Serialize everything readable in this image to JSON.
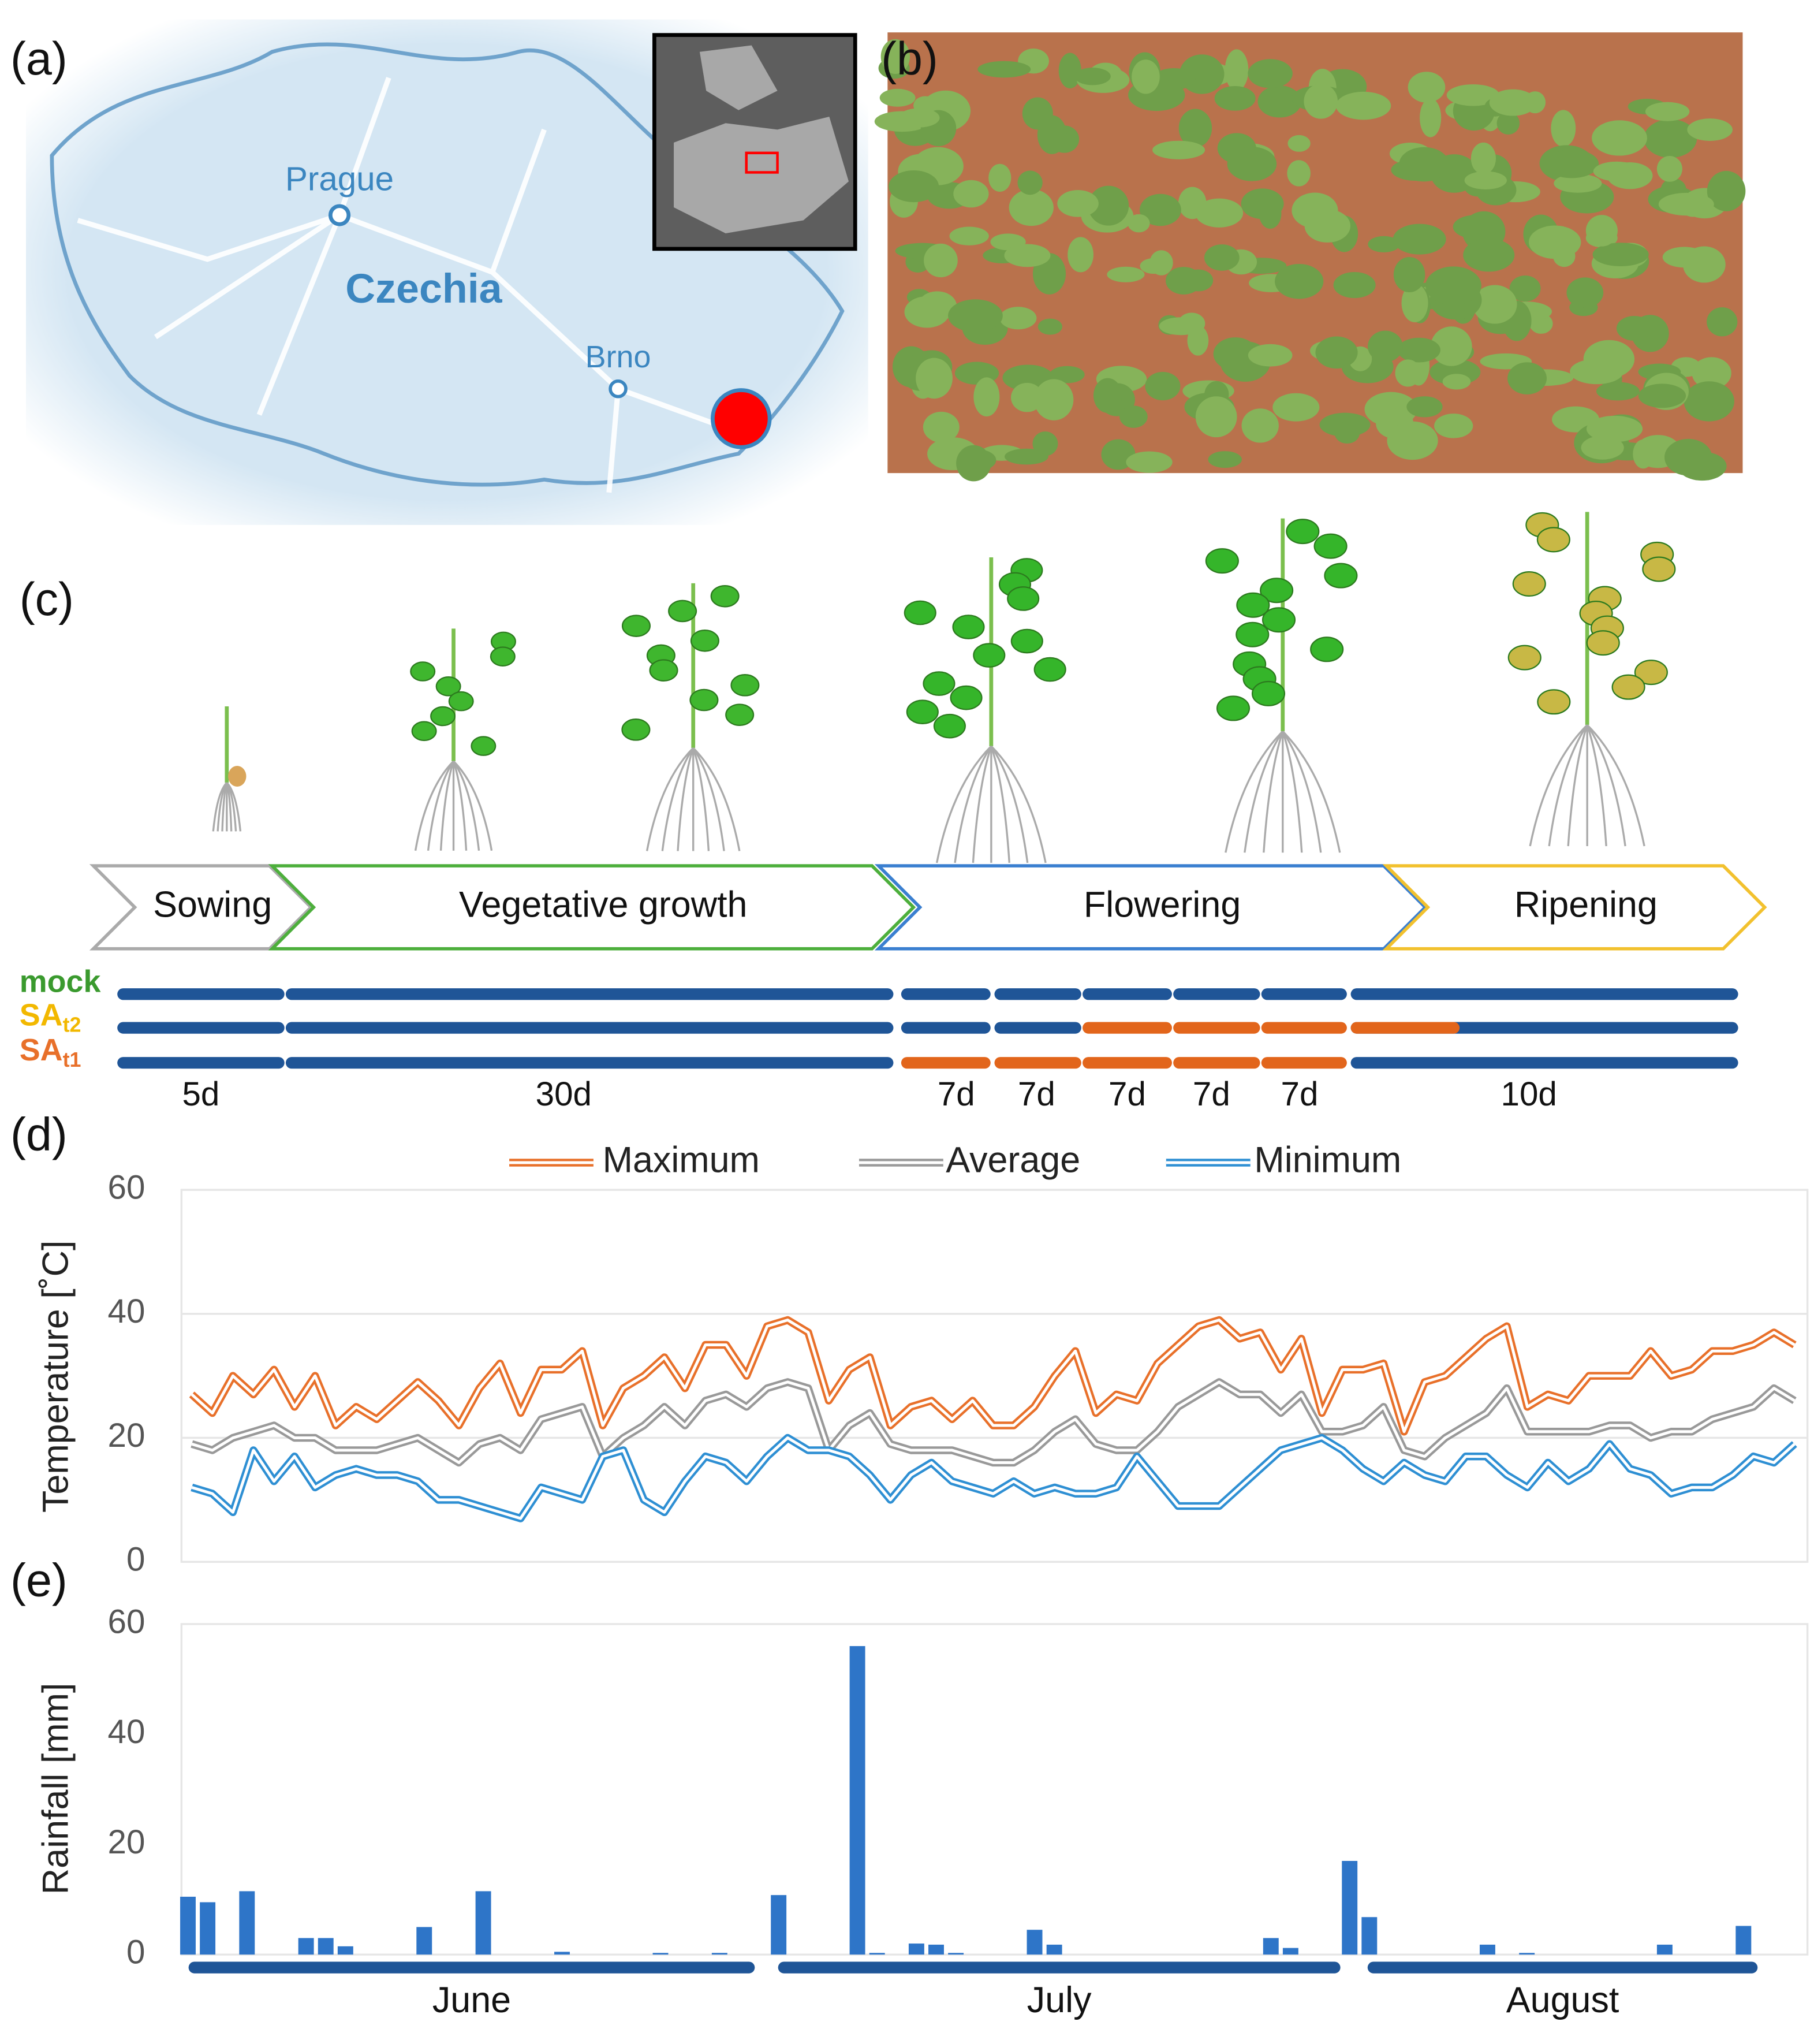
{
  "panels": {
    "a": "(a)",
    "b": "(b)",
    "c": "(c)",
    "d": "(d)",
    "e": "(e)"
  },
  "map": {
    "labels": [
      "Prague",
      "Czechia",
      "Brno"
    ]
  },
  "stages": [
    "Sowing",
    "Vegetative growth",
    "Flowering",
    "Ripening"
  ],
  "treatments": [
    {
      "name": "mock",
      "color": "#3a9a2e"
    },
    {
      "name": "SA",
      "sub": "t2",
      "color": "#f2b800"
    },
    {
      "name": "SA",
      "sub": "t1",
      "color": "#e8702a"
    }
  ],
  "durations": [
    "5d",
    "30d",
    "7d",
    "7d",
    "7d",
    "7d",
    "7d",
    "10d"
  ],
  "chart_data": [
    {
      "type": "line",
      "ylabel": "Temperature [˚C]",
      "ylim": [
        0,
        60
      ],
      "yticks": [
        0,
        20,
        40,
        60
      ],
      "grid": true,
      "series": [
        {
          "name": "Maximum",
          "color": "#e8702a",
          "values": [
            27,
            24,
            30,
            27,
            31,
            25,
            30,
            22,
            25,
            23,
            26,
            29,
            26,
            22,
            28,
            32,
            24,
            31,
            31,
            34,
            22,
            28,
            30,
            33,
            28,
            35,
            35,
            30,
            38,
            39,
            37,
            26,
            31,
            33,
            22,
            25,
            26,
            23,
            26,
            22,
            22,
            25,
            30,
            34,
            24,
            27,
            26,
            32,
            35,
            38,
            39,
            36,
            37,
            31,
            36,
            24,
            31,
            31,
            32,
            21,
            29,
            30,
            33,
            36,
            38,
            25,
            27,
            26,
            30,
            30,
            30,
            34,
            30,
            31,
            34,
            34,
            35,
            37,
            35
          ]
        },
        {
          "name": "Average",
          "color": "#999999",
          "values": [
            19,
            18,
            20,
            21,
            22,
            20,
            20,
            18,
            18,
            18,
            19,
            20,
            18,
            16,
            19,
            20,
            18,
            23,
            24,
            25,
            17,
            20,
            22,
            25,
            22,
            26,
            27,
            25,
            28,
            29,
            28,
            18,
            22,
            24,
            19,
            18,
            18,
            18,
            17,
            16,
            16,
            18,
            21,
            23,
            19,
            18,
            18,
            21,
            25,
            27,
            29,
            27,
            27,
            24,
            27,
            21,
            21,
            22,
            25,
            18,
            17,
            20,
            22,
            24,
            28,
            21,
            21,
            21,
            21,
            22,
            22,
            20,
            21,
            21,
            23,
            24,
            25,
            28,
            26
          ]
        },
        {
          "name": "Minimum",
          "color": "#2e8fd3",
          "values": [
            12,
            11,
            8,
            18,
            13,
            17,
            12,
            14,
            15,
            14,
            14,
            13,
            10,
            10,
            9,
            8,
            7,
            12,
            11,
            10,
            17,
            18,
            10,
            8,
            13,
            17,
            16,
            13,
            17,
            20,
            18,
            18,
            17,
            14,
            10,
            14,
            16,
            13,
            12,
            11,
            13,
            11,
            12,
            11,
            11,
            12,
            17,
            13,
            9,
            9,
            9,
            12,
            15,
            18,
            19,
            20,
            18,
            15,
            13,
            16,
            14,
            13,
            17,
            17,
            14,
            12,
            16,
            13,
            15,
            19,
            15,
            14,
            11,
            12,
            12,
            14,
            17,
            16,
            19
          ]
        }
      ]
    },
    {
      "type": "bar",
      "ylabel": "Rainfall [mm]",
      "months": [
        "June",
        "July",
        "August"
      ],
      "color": "#2e75c8",
      "ylim": [
        0,
        60
      ],
      "yticks": [
        0,
        20,
        40,
        60
      ],
      "grid": false,
      "values": [
        10.5,
        9.5,
        0,
        11.5,
        0,
        0,
        3,
        3,
        1.5,
        0,
        0,
        0,
        5,
        0,
        0,
        11.5,
        0,
        0,
        0,
        0.5,
        0,
        0,
        0,
        0,
        0.3,
        0,
        0,
        0.3,
        0,
        0,
        10.8,
        0,
        0,
        0,
        56,
        0.3,
        0,
        2,
        1.8,
        0.3,
        0,
        0,
        0,
        4.5,
        1.8,
        0,
        0,
        0,
        0,
        0,
        0,
        0,
        0,
        0,
        0,
        3,
        1.2,
        0,
        0,
        17,
        6.8,
        0,
        0,
        0,
        0,
        0,
        1.8,
        0,
        0.3,
        0,
        0,
        0,
        0,
        0,
        0,
        1.8,
        0,
        0,
        0,
        5.2,
        0,
        0
      ]
    }
  ]
}
